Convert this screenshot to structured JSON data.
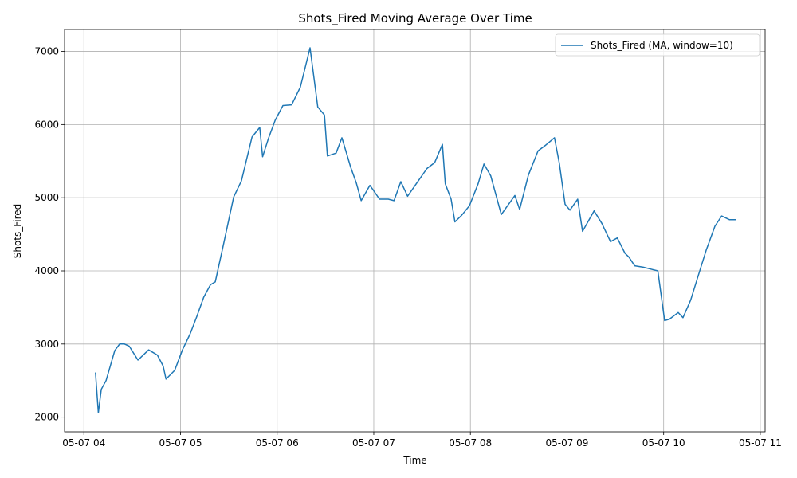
{
  "chart_data": {
    "type": "line",
    "title": "Shots_Fired Moving Average Over Time",
    "xlabel": "Time",
    "ylabel": "Shots_Fired",
    "x_unit": "hours since 05-07 04:00",
    "xlim": [
      -0.2,
      7.05
    ],
    "ylim": [
      1800,
      7300
    ],
    "grid": true,
    "legend_position": "top-right",
    "x_ticks": [
      {
        "value": 0,
        "label": "05-07 04"
      },
      {
        "value": 1,
        "label": "05-07 05"
      },
      {
        "value": 2,
        "label": "05-07 06"
      },
      {
        "value": 3,
        "label": "05-07 07"
      },
      {
        "value": 4,
        "label": "05-07 08"
      },
      {
        "value": 5,
        "label": "05-07 09"
      },
      {
        "value": 6,
        "label": "05-07 10"
      },
      {
        "value": 7,
        "label": "05-07 11"
      }
    ],
    "y_ticks": [
      {
        "value": 2000,
        "label": "2000"
      },
      {
        "value": 3000,
        "label": "3000"
      },
      {
        "value": 4000,
        "label": "4000"
      },
      {
        "value": 5000,
        "label": "5000"
      },
      {
        "value": 6000,
        "label": "6000"
      },
      {
        "value": 7000,
        "label": "7000"
      }
    ],
    "series": [
      {
        "name": "Shots_Fired (MA, window=10)",
        "color": "#1f77b4",
        "x": [
          0.12,
          0.15,
          0.18,
          0.23,
          0.32,
          0.37,
          0.42,
          0.47,
          0.56,
          0.67,
          0.76,
          0.82,
          0.85,
          0.94,
          1.02,
          1.1,
          1.17,
          1.24,
          1.31,
          1.36,
          1.44,
          1.55,
          1.63,
          1.74,
          1.82,
          1.85,
          1.91,
          1.98,
          2.06,
          2.15,
          2.24,
          2.34,
          2.42,
          2.49,
          2.52,
          2.61,
          2.67,
          2.76,
          2.82,
          2.87,
          2.96,
          3.06,
          3.15,
          3.21,
          3.28,
          3.35,
          3.45,
          3.55,
          3.63,
          3.71,
          3.74,
          3.8,
          3.84,
          3.91,
          3.99,
          4.08,
          4.14,
          4.21,
          4.32,
          4.46,
          4.51,
          4.6,
          4.7,
          4.78,
          4.87,
          4.92,
          4.98,
          5.03,
          5.11,
          5.16,
          5.28,
          5.36,
          5.45,
          5.52,
          5.6,
          5.64,
          5.7,
          5.79,
          5.88,
          5.94,
          6.01,
          6.06,
          6.15,
          6.2,
          6.28,
          6.35,
          6.44,
          6.53,
          6.6,
          6.68,
          6.75
        ],
        "values": [
          2610,
          2060,
          2380,
          2500,
          2910,
          3000,
          3000,
          2970,
          2780,
          2920,
          2850,
          2700,
          2520,
          2640,
          2920,
          3140,
          3380,
          3640,
          3810,
          3850,
          4330,
          5010,
          5230,
          5830,
          5960,
          5560,
          5810,
          6060,
          6260,
          6270,
          6510,
          7050,
          6240,
          6130,
          5570,
          5610,
          5820,
          5420,
          5200,
          4960,
          5170,
          4980,
          4980,
          4960,
          5220,
          5020,
          5210,
          5400,
          5480,
          5730,
          5190,
          4980,
          4670,
          4760,
          4890,
          5190,
          5460,
          5300,
          4770,
          5030,
          4840,
          5310,
          5640,
          5720,
          5820,
          5470,
          4910,
          4830,
          4980,
          4540,
          4820,
          4650,
          4400,
          4450,
          4240,
          4190,
          4070,
          4050,
          4020,
          4000,
          3320,
          3340,
          3430,
          3360,
          3600,
          3900,
          4280,
          4610,
          4750,
          4700,
          4700
        ]
      }
    ]
  }
}
